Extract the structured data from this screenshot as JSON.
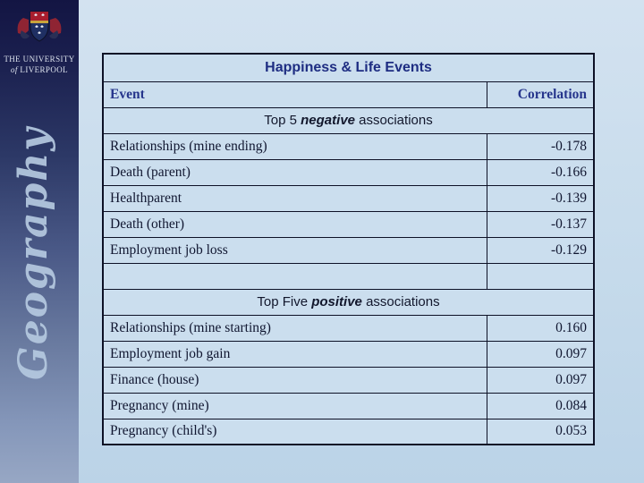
{
  "slide": {
    "sidebar": {
      "crest_icon": "university-of-liverpool-crest",
      "university_line1": "THE UNIVERSITY",
      "university_line2_of": "of",
      "university_line2_name": "LIVERPOOL",
      "vertical_text": "Geography"
    },
    "table": {
      "title": "Happiness & Life Events",
      "columns": [
        "Event",
        "Correlation"
      ],
      "sections": [
        {
          "heading": {
            "prefix": "Top 5 ",
            "emphasis": "negative",
            "suffix": " associations"
          },
          "rows": [
            {
              "event": "Relationships (mine ending)",
              "correlation": "-0.178"
            },
            {
              "event": "Death (parent)",
              "correlation": "-0.166"
            },
            {
              "event": "Healthparent",
              "correlation": "-0.139"
            },
            {
              "event": "Death (other)",
              "correlation": "-0.137"
            },
            {
              "event": "Employment job loss",
              "correlation": "-0.129"
            }
          ]
        },
        {
          "heading": {
            "prefix": "Top Five ",
            "emphasis": "positive",
            "suffix": " associations"
          },
          "rows": [
            {
              "event": "Relationships (mine starting)",
              "correlation": "0.160"
            },
            {
              "event": "Employment job gain",
              "correlation": "0.097"
            },
            {
              "event": "Finance (house)",
              "correlation": "0.097"
            },
            {
              "event": "Pregnancy (mine)",
              "correlation": "0.084"
            },
            {
              "event": "Pregnancy (child's)",
              "correlation": "0.053"
            }
          ]
        }
      ]
    },
    "colors": {
      "table_border": "#0d1126",
      "cell_background": "#cbdeee",
      "title_navy": "#1e2d82",
      "header_navy": "#26358c",
      "body_text": "#101630",
      "sidebar_top": "#131543",
      "sidebar_bottom": "#97a7c4",
      "crest_red": "#a81e2e",
      "crest_blue": "#1f2f63",
      "crest_gold": "#c8a43c",
      "script_text": "#b5c9e0"
    }
  }
}
